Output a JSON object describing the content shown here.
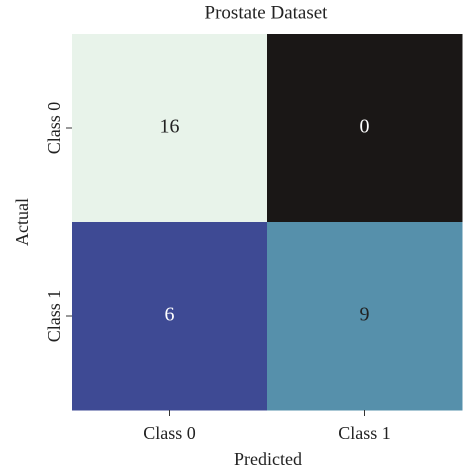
{
  "chart_data": {
    "type": "heatmap",
    "title": "Prostate Dataset",
    "x_label": "Predicted",
    "y_label": "Actual",
    "x_categories": [
      "Class 0",
      "Class 1"
    ],
    "y_categories": [
      "Class 0",
      "Class 1"
    ],
    "values": [
      [
        16,
        0
      ],
      [
        6,
        9
      ]
    ],
    "cell_colors": [
      [
        "#e8f3ea",
        "#1a1716"
      ],
      [
        "#3e4a94",
        "#5690ab"
      ]
    ]
  }
}
